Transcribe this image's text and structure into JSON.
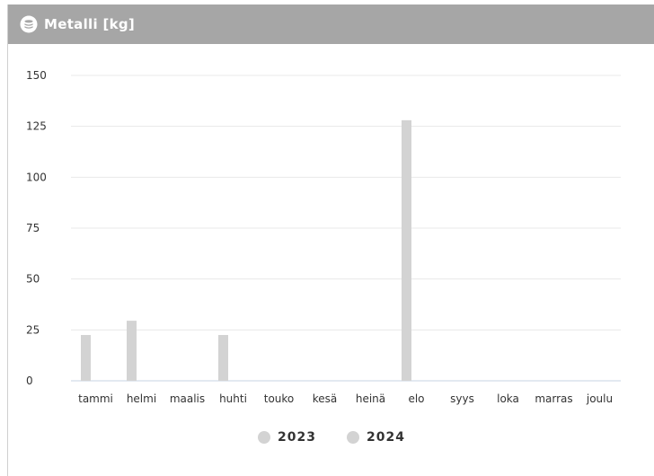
{
  "header": {
    "title": "Metalli [kg]",
    "icon": "coin-stack-icon",
    "background": "#a6a6a6"
  },
  "chart_data": {
    "type": "bar",
    "title": "Metalli [kg]",
    "categories": [
      "tammi",
      "helmi",
      "maalis",
      "huhti",
      "touko",
      "kesä",
      "heinä",
      "elo",
      "syys",
      "loka",
      "marras",
      "joulu"
    ],
    "series": [
      {
        "name": "2023",
        "color": "#d3d3d3",
        "values": [
          22.5,
          29.5,
          0,
          22.5,
          0,
          0,
          0,
          128,
          0,
          0,
          0,
          0
        ]
      },
      {
        "name": "2024",
        "color": "#d3d3d3",
        "values": [
          0,
          0,
          0,
          0,
          0,
          0,
          0,
          0,
          0,
          0,
          0,
          0
        ]
      }
    ],
    "ylim": [
      0,
      150
    ],
    "yticks": [
      "0",
      "25",
      "50",
      "75",
      "100",
      "125",
      "150"
    ],
    "grid": true,
    "legend_position": "bottom"
  }
}
